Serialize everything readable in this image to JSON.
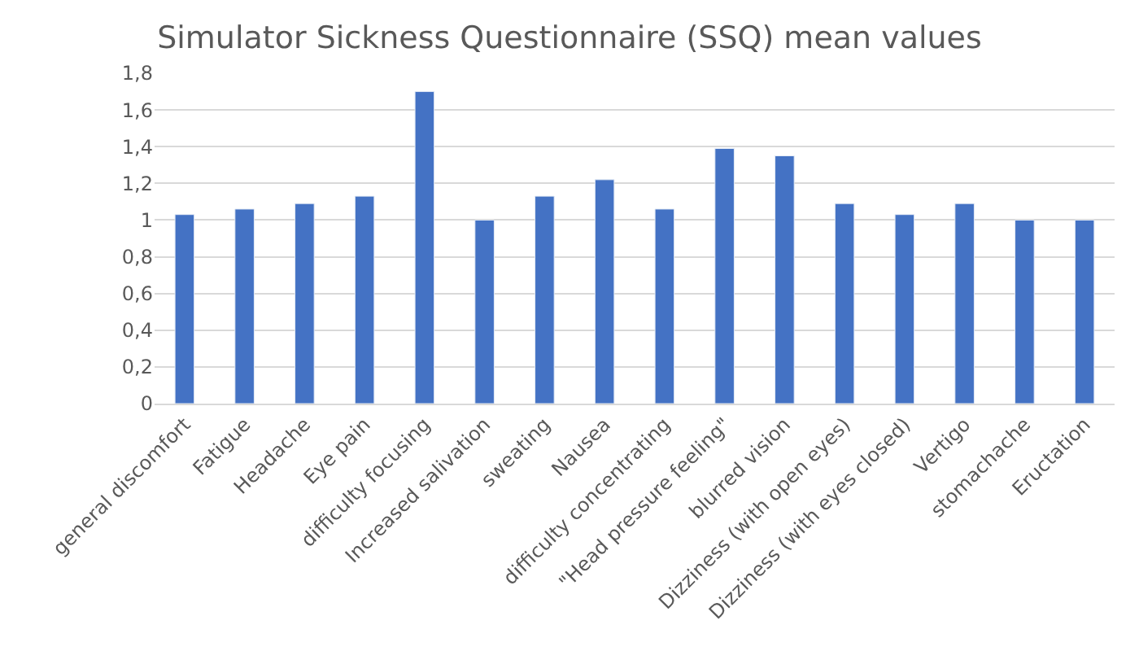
{
  "chart_data": {
    "type": "bar",
    "title": "Simulator Sickness Questionnaire (SSQ) mean values",
    "categories": [
      "general discomfort",
      "Fatigue",
      "Headache",
      "Eye pain",
      "difficulty focusing",
      "Increased salivation",
      "sweating",
      "Nausea",
      "difficulty concentrating",
      "\"Head pressure feeling\"",
      "blurred vision",
      "Dizziness (with open eyes)",
      "Dizziness (with eyes closed)",
      "Vertigo",
      "stomachache",
      "Eructation"
    ],
    "values": [
      1.03,
      1.06,
      1.09,
      1.13,
      1.7,
      1.0,
      1.13,
      1.22,
      1.06,
      1.39,
      1.35,
      1.09,
      1.03,
      1.09,
      1.0,
      1.0
    ],
    "color": "#4472c4",
    "ylim": [
      0,
      1.8
    ],
    "yticks": [
      {
        "value": 0,
        "label": "0"
      },
      {
        "value": 0.2,
        "label": "0,2"
      },
      {
        "value": 0.4,
        "label": "0,4"
      },
      {
        "value": 0.6,
        "label": "0,6"
      },
      {
        "value": 0.8,
        "label": "0,8"
      },
      {
        "value": 1,
        "label": "1"
      },
      {
        "value": 1.2,
        "label": "1,2"
      },
      {
        "value": 1.4,
        "label": "1,4"
      },
      {
        "value": 1.6,
        "label": "1,6"
      },
      {
        "value": 1.8,
        "label": "1,8"
      }
    ],
    "grid": "y"
  }
}
